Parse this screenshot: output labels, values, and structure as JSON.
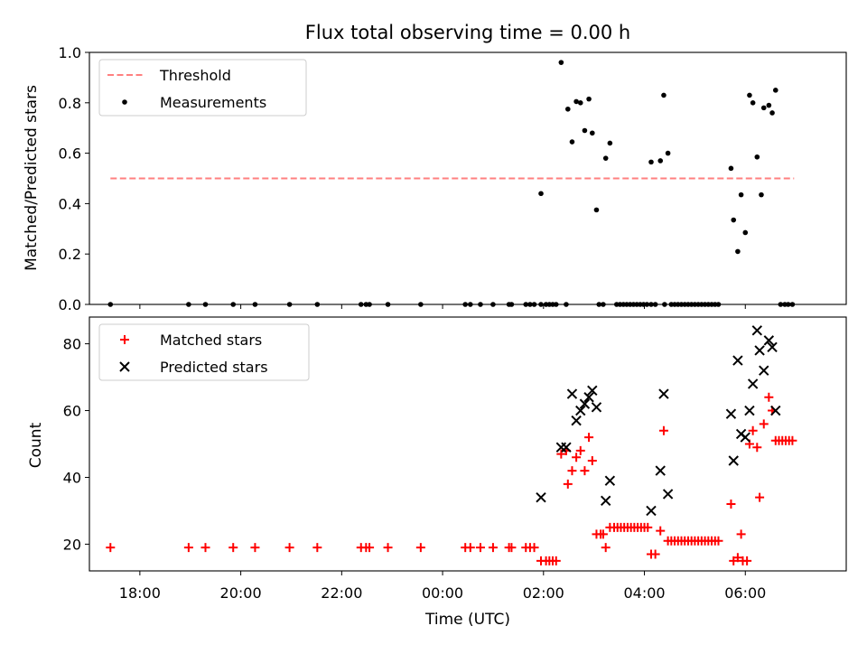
{
  "figure": {
    "title": "Flux total observing time = 0.00 h",
    "xlabel": "Time (UTC)"
  },
  "colors": {
    "threshold": "#ff8080",
    "measurement": "#000000",
    "matched": "#ff0000",
    "predicted": "#000000"
  },
  "chart_data": [
    {
      "type": "scatter",
      "ylabel": "Matched/Predicted stars",
      "xlim": [
        "17:00",
        "08:00"
      ],
      "ylim": [
        0,
        1
      ],
      "y_ticks": [
        "0.0",
        "0.2",
        "0.4",
        "0.6",
        "0.8",
        "1.0"
      ],
      "grid": false,
      "legend": "top-left",
      "series": [
        {
          "name": "Threshold",
          "kind": "dashed-line",
          "points": [
            [
              "17:25",
              0.5
            ],
            [
              "06:58",
              0.5
            ]
          ]
        },
        {
          "name": "Measurements",
          "kind": "dots",
          "points": [
            [
              "17:25",
              0
            ],
            [
              "18:58",
              0
            ],
            [
              "19:18",
              0
            ],
            [
              "19:51",
              0
            ],
            [
              "20:17",
              0
            ],
            [
              "20:58",
              0
            ],
            [
              "21:31",
              0
            ],
            [
              "22:23",
              0
            ],
            [
              "22:29",
              0
            ],
            [
              "22:33",
              0
            ],
            [
              "22:55",
              0
            ],
            [
              "23:34",
              0
            ],
            [
              "00:27",
              0
            ],
            [
              "00:33",
              0
            ],
            [
              "00:45",
              0
            ],
            [
              "01:00",
              0
            ],
            [
              "01:19",
              0
            ],
            [
              "01:22",
              0
            ],
            [
              "01:39",
              0
            ],
            [
              "01:44",
              0
            ],
            [
              "01:49",
              0
            ],
            [
              "01:57",
              0
            ],
            [
              "02:03",
              0
            ],
            [
              "02:07",
              0
            ],
            [
              "02:11",
              0
            ],
            [
              "02:15",
              0
            ],
            [
              "02:27",
              0
            ],
            [
              "01:57",
              0.44
            ],
            [
              "02:21",
              0.96
            ],
            [
              "02:29",
              0.775
            ],
            [
              "02:34",
              0.645
            ],
            [
              "02:39",
              0.805
            ],
            [
              "02:44",
              0.8
            ],
            [
              "02:49",
              0.69
            ],
            [
              "02:54",
              0.815
            ],
            [
              "02:58",
              0.68
            ],
            [
              "03:03",
              0.375
            ],
            [
              "03:14",
              0.58
            ],
            [
              "03:19",
              0.64
            ],
            [
              "03:06",
              0
            ],
            [
              "03:11",
              0
            ],
            [
              "03:27",
              0
            ],
            [
              "03:31",
              0
            ],
            [
              "03:35",
              0
            ],
            [
              "03:39",
              0
            ],
            [
              "03:43",
              0
            ],
            [
              "03:47",
              0
            ],
            [
              "03:51",
              0
            ],
            [
              "03:55",
              0
            ],
            [
              "03:59",
              0
            ],
            [
              "04:03",
              0
            ],
            [
              "04:08",
              0
            ],
            [
              "04:13",
              0
            ],
            [
              "04:08",
              0.565
            ],
            [
              "04:19",
              0.57
            ],
            [
              "04:23",
              0.83
            ],
            [
              "04:28",
              0.6
            ],
            [
              "04:24",
              0
            ],
            [
              "04:32",
              0
            ],
            [
              "04:36",
              0
            ],
            [
              "04:40",
              0
            ],
            [
              "04:44",
              0
            ],
            [
              "04:48",
              0
            ],
            [
              "04:52",
              0
            ],
            [
              "04:56",
              0
            ],
            [
              "05:00",
              0
            ],
            [
              "05:04",
              0
            ],
            [
              "05:08",
              0
            ],
            [
              "05:12",
              0
            ],
            [
              "05:16",
              0
            ],
            [
              "05:20",
              0
            ],
            [
              "05:24",
              0
            ],
            [
              "05:28",
              0
            ],
            [
              "05:43",
              0.54
            ],
            [
              "05:46",
              0.335
            ],
            [
              "05:51",
              0.21
            ],
            [
              "05:55",
              0.435
            ],
            [
              "06:00",
              0.285
            ],
            [
              "06:05",
              0.83
            ],
            [
              "06:09",
              0.8
            ],
            [
              "06:14",
              0.585
            ],
            [
              "06:19",
              0.435
            ],
            [
              "06:22",
              0.78
            ],
            [
              "06:28",
              0.79
            ],
            [
              "06:32",
              0.76
            ],
            [
              "06:36",
              0.85
            ],
            [
              "06:42",
              0
            ],
            [
              "06:47",
              0
            ],
            [
              "06:51",
              0
            ],
            [
              "06:56",
              0
            ]
          ]
        }
      ]
    },
    {
      "type": "scatter",
      "ylabel": "Count",
      "xlim": [
        "17:00",
        "08:00"
      ],
      "ylim": [
        12,
        88
      ],
      "y_ticks": [
        "20",
        "40",
        "60",
        "80"
      ],
      "x_ticks": [
        "18:00",
        "20:00",
        "22:00",
        "00:00",
        "02:00",
        "04:00",
        "06:00"
      ],
      "grid": false,
      "legend": "top-left",
      "series": [
        {
          "name": "Matched stars",
          "kind": "plus",
          "points": [
            [
              "17:25",
              19
            ],
            [
              "18:58",
              19
            ],
            [
              "19:18",
              19
            ],
            [
              "19:51",
              19
            ],
            [
              "20:17",
              19
            ],
            [
              "20:58",
              19
            ],
            [
              "21:31",
              19
            ],
            [
              "22:23",
              19
            ],
            [
              "22:29",
              19
            ],
            [
              "22:33",
              19
            ],
            [
              "22:55",
              19
            ],
            [
              "23:34",
              19
            ],
            [
              "00:27",
              19
            ],
            [
              "00:33",
              19
            ],
            [
              "00:45",
              19
            ],
            [
              "01:00",
              19
            ],
            [
              "01:19",
              19
            ],
            [
              "01:22",
              19
            ],
            [
              "01:39",
              19
            ],
            [
              "01:44",
              19
            ],
            [
              "01:49",
              19
            ],
            [
              "01:57",
              15
            ],
            [
              "02:03",
              15
            ],
            [
              "02:07",
              15
            ],
            [
              "02:11",
              15
            ],
            [
              "02:15",
              15
            ],
            [
              "02:21",
              47
            ],
            [
              "02:27",
              48
            ],
            [
              "02:29",
              38
            ],
            [
              "02:34",
              42
            ],
            [
              "02:39",
              46
            ],
            [
              "02:44",
              48
            ],
            [
              "02:49",
              42
            ],
            [
              "02:54",
              52
            ],
            [
              "02:58",
              45
            ],
            [
              "03:03",
              23
            ],
            [
              "03:08",
              23
            ],
            [
              "03:11",
              23
            ],
            [
              "03:14",
              19
            ],
            [
              "03:19",
              25
            ],
            [
              "03:24",
              25
            ],
            [
              "03:28",
              25
            ],
            [
              "03:32",
              25
            ],
            [
              "03:36",
              25
            ],
            [
              "03:40",
              25
            ],
            [
              "03:44",
              25
            ],
            [
              "03:48",
              25
            ],
            [
              "03:52",
              25
            ],
            [
              "03:56",
              25
            ],
            [
              "04:00",
              25
            ],
            [
              "04:04",
              25
            ],
            [
              "04:08",
              17
            ],
            [
              "04:13",
              17
            ],
            [
              "04:19",
              24
            ],
            [
              "04:23",
              54
            ],
            [
              "04:28",
              21
            ],
            [
              "04:32",
              21
            ],
            [
              "04:36",
              21
            ],
            [
              "04:40",
              21
            ],
            [
              "04:44",
              21
            ],
            [
              "04:48",
              21
            ],
            [
              "04:52",
              21
            ],
            [
              "04:56",
              21
            ],
            [
              "05:00",
              21
            ],
            [
              "05:04",
              21
            ],
            [
              "05:08",
              21
            ],
            [
              "05:12",
              21
            ],
            [
              "05:16",
              21
            ],
            [
              "05:20",
              21
            ],
            [
              "05:24",
              21
            ],
            [
              "05:28",
              21
            ],
            [
              "05:43",
              32
            ],
            [
              "05:46",
              15
            ],
            [
              "05:51",
              16
            ],
            [
              "05:55",
              23
            ],
            [
              "05:57",
              15
            ],
            [
              "06:02",
              15
            ],
            [
              "06:05",
              50
            ],
            [
              "06:09",
              54
            ],
            [
              "06:14",
              49
            ],
            [
              "06:17",
              34
            ],
            [
              "06:22",
              56
            ],
            [
              "06:28",
              64
            ],
            [
              "06:32",
              60
            ],
            [
              "06:36",
              51
            ],
            [
              "06:40",
              51
            ],
            [
              "06:44",
              51
            ],
            [
              "06:48",
              51
            ],
            [
              "06:52",
              51
            ],
            [
              "06:56",
              51
            ]
          ]
        },
        {
          "name": "Predicted stars",
          "kind": "x",
          "points": [
            [
              "01:57",
              34
            ],
            [
              "02:21",
              49
            ],
            [
              "02:27",
              49
            ],
            [
              "02:34",
              65
            ],
            [
              "02:39",
              57
            ],
            [
              "02:44",
              60
            ],
            [
              "02:49",
              62
            ],
            [
              "02:54",
              64
            ],
            [
              "02:58",
              66
            ],
            [
              "03:03",
              61
            ],
            [
              "03:14",
              33
            ],
            [
              "03:19",
              39
            ],
            [
              "04:08",
              30
            ],
            [
              "04:19",
              42
            ],
            [
              "04:23",
              65
            ],
            [
              "04:28",
              35
            ],
            [
              "05:43",
              59
            ],
            [
              "05:46",
              45
            ],
            [
              "05:51",
              75
            ],
            [
              "05:55",
              53
            ],
            [
              "06:00",
              52
            ],
            [
              "06:05",
              60
            ],
            [
              "06:09",
              68
            ],
            [
              "06:14",
              84
            ],
            [
              "06:17",
              78
            ],
            [
              "06:22",
              72
            ],
            [
              "06:28",
              81
            ],
            [
              "06:32",
              79
            ],
            [
              "06:36",
              60
            ]
          ]
        }
      ]
    }
  ]
}
